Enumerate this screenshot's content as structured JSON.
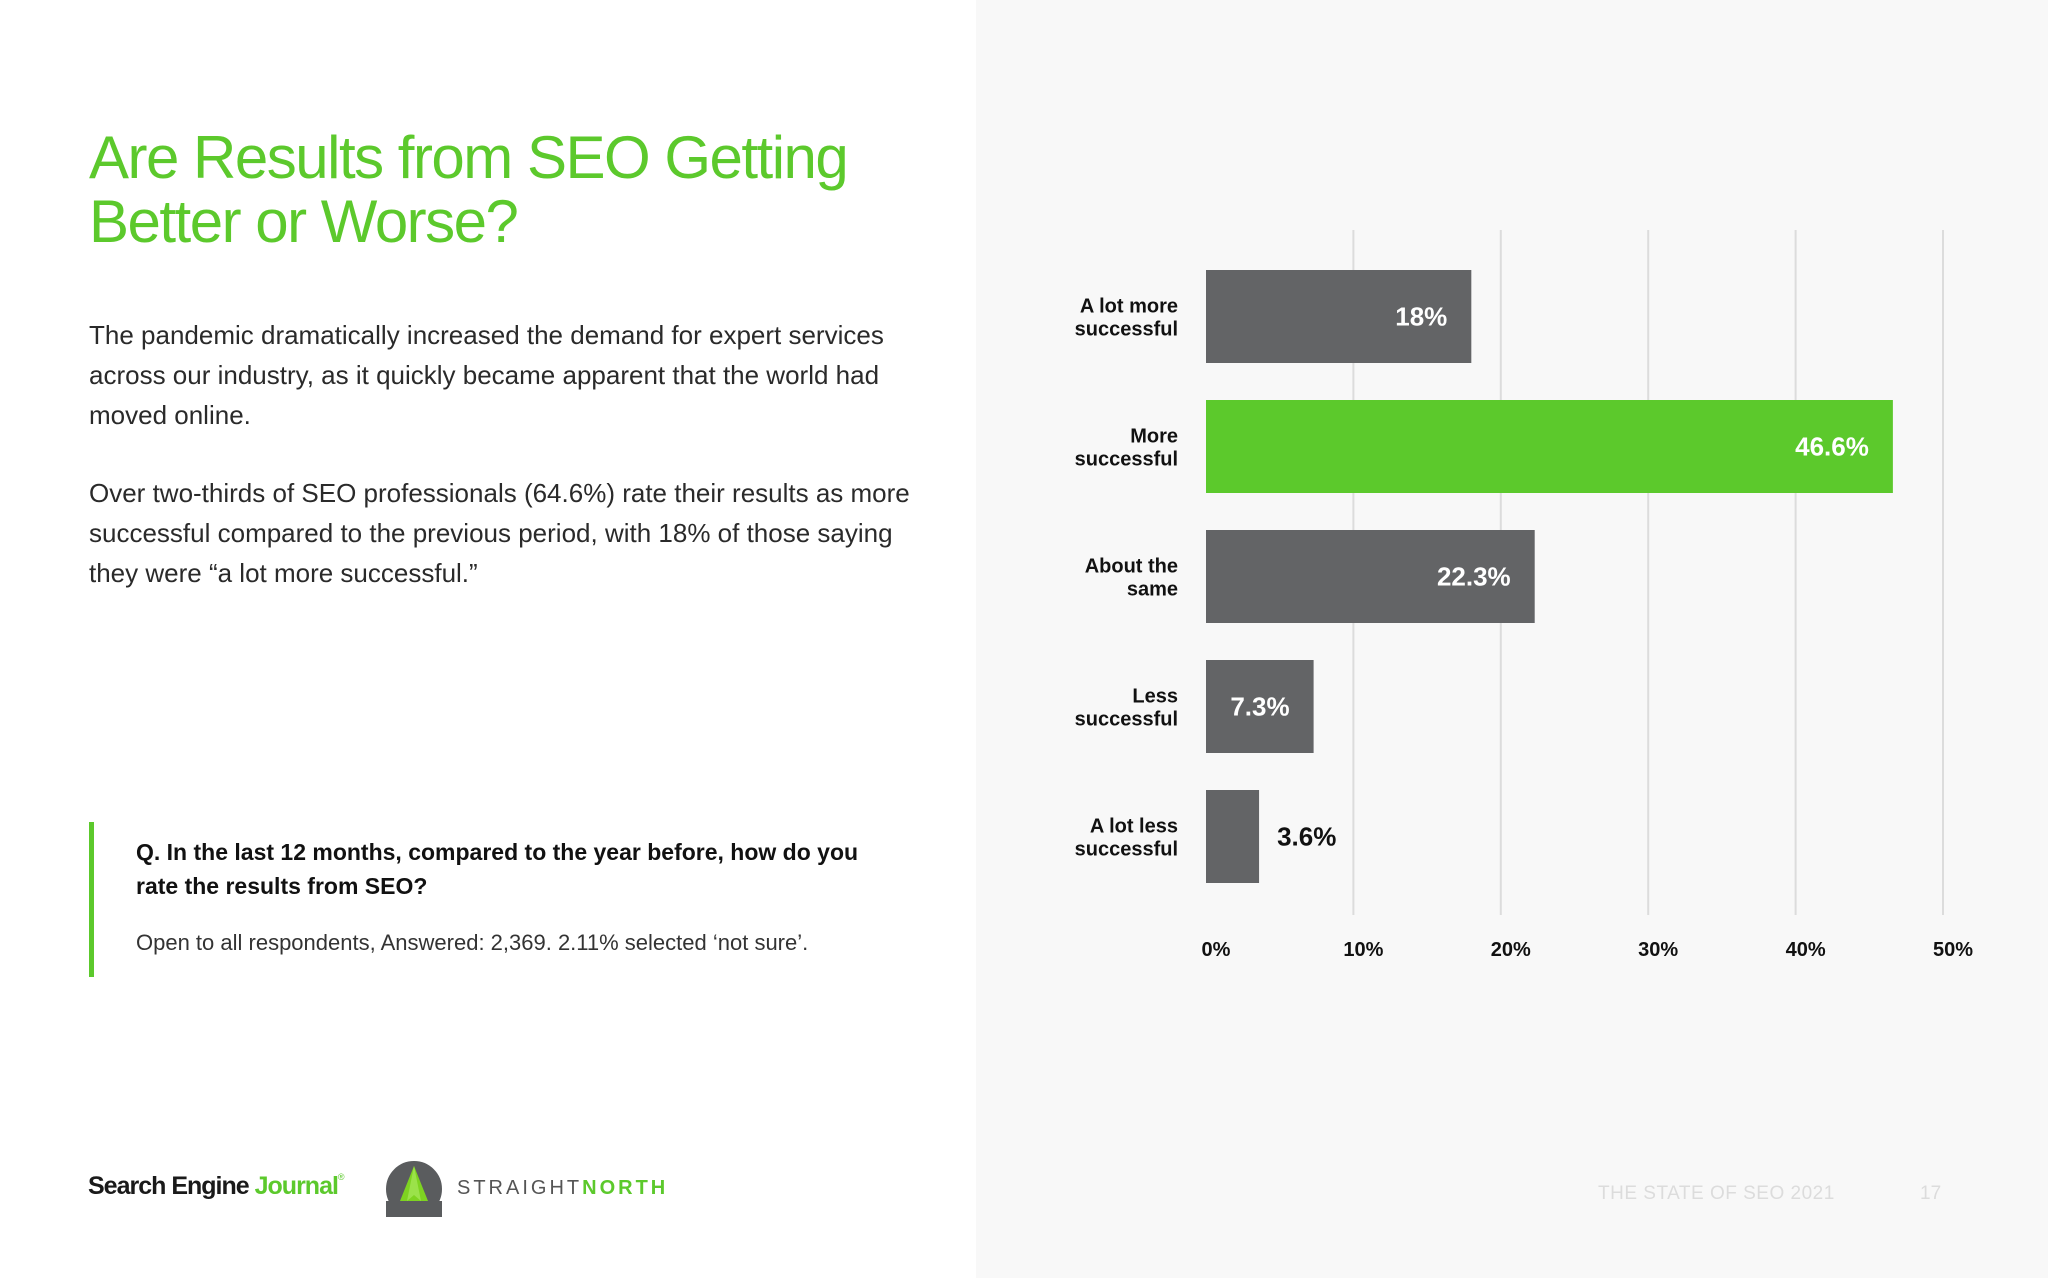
{
  "header": {
    "title_line1": "Are Results from SEO Getting",
    "title_line2": "Better or Worse?"
  },
  "body": {
    "paragraph1": "The pandemic dramatically increased the demand for expert services across our industry, as it quickly became apparent that the world had moved online.",
    "paragraph2": "Over two-thirds of SEO professionals (64.6%) rate their results as more successful compared to the previous period, with 18% of those saying they were “a lot more successful.”"
  },
  "question": {
    "text": "Q. In the last 12 months, compared to the year before, how do you rate the results from SEO?",
    "note": "Open to all respondents, Answered: 2,369. 2.11% selected ‘not sure’."
  },
  "footer": {
    "sej_name": "Search Engine",
    "sej_accent": "Journal",
    "sej_mark": "®",
    "partner_name_a": "STRAIGHT",
    "partner_name_b": "NORTH",
    "report_title": "THE STATE OF SEO 2021",
    "page_number": "17"
  },
  "colors": {
    "accent": "#5cc92c",
    "bar": "#636466",
    "highlight_bar": "#5cc92c",
    "grid": "#dcdcdc"
  },
  "chart_data": {
    "type": "bar",
    "orientation": "horizontal",
    "title": "",
    "xlabel": "",
    "ylabel": "",
    "categories": [
      [
        "A lot more",
        "successful"
      ],
      [
        "More",
        "successful"
      ],
      [
        "About the",
        "same"
      ],
      [
        "Less",
        "successful"
      ],
      [
        "A lot less",
        "successful"
      ]
    ],
    "values": [
      18,
      46.6,
      22.3,
      7.3,
      3.6
    ],
    "value_labels": [
      "18%",
      "46.6%",
      "22.3%",
      "7.3%",
      "3.6%"
    ],
    "highlight_index": 1,
    "xlim": [
      0,
      50
    ],
    "xticks": [
      0,
      10,
      20,
      30,
      40,
      50
    ],
    "xtick_labels": [
      "0%",
      "10%",
      "20%",
      "30%",
      "40%",
      "50%"
    ],
    "grid": true
  }
}
